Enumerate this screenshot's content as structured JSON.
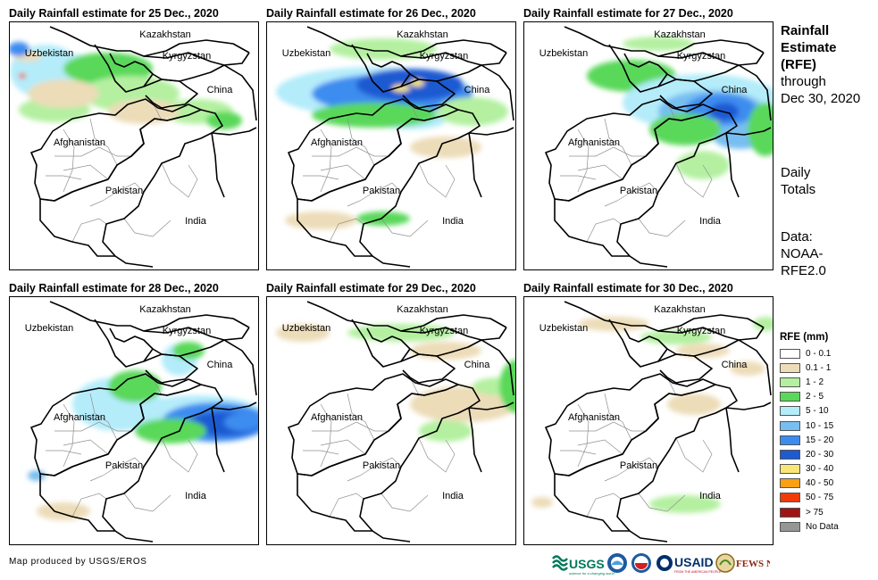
{
  "panels": [
    {
      "title": "Daily Rainfall estimate for 25 Dec., 2020"
    },
    {
      "title": "Daily Rainfall estimate for 26 Dec., 2020"
    },
    {
      "title": "Daily Rainfall estimate for 27 Dec., 2020"
    },
    {
      "title": "Daily Rainfall estimate for 28 Dec., 2020"
    },
    {
      "title": "Daily Rainfall estimate for 29 Dec., 2020"
    },
    {
      "title": "Daily Rainfall estimate for 30 Dec., 2020"
    }
  ],
  "map_labels": {
    "kazakhstan": "Kazakhstan",
    "uzbekistan": "Uzbekistan",
    "kyrgyzstan": "Kyrgyzstan",
    "china": "China",
    "afghanistan": "Afghanistan",
    "pakistan": "Pakistan",
    "india": "India"
  },
  "side_panel": {
    "title_line1": "Rainfall",
    "title_line2": "Estimate",
    "title_line3": "(RFE)",
    "through_line1": "through",
    "through_line2": "Dec 30, 2020",
    "daily_line1": "Daily",
    "daily_line2": "Totals",
    "data_line1": "Data:",
    "data_line2": "NOAA-",
    "data_line3": "RFE2.0"
  },
  "legend": {
    "title": "RFE (mm)",
    "items": [
      {
        "label": "0 - 0.1",
        "color": "#ffffff"
      },
      {
        "label": "0.1 - 1",
        "color": "#ecdcb8"
      },
      {
        "label": "1 - 2",
        "color": "#b4f0a0"
      },
      {
        "label": "2 - 5",
        "color": "#5ad85a"
      },
      {
        "label": "5 - 10",
        "color": "#b4ecfa"
      },
      {
        "label": "10 - 15",
        "color": "#78bef0"
      },
      {
        "label": "15 - 20",
        "color": "#3c8cf0"
      },
      {
        "label": "20 - 30",
        "color": "#1e5ad2"
      },
      {
        "label": "30 - 40",
        "color": "#fae678"
      },
      {
        "label": "40 - 50",
        "color": "#faa014"
      },
      {
        "label": "50 - 75",
        "color": "#f03c0a"
      },
      {
        "label": "> 75",
        "color": "#a01414"
      },
      {
        "label": "No Data",
        "color": "#969696"
      }
    ]
  },
  "credit": "Map produced by USGS/EROS",
  "logos": {
    "usgs": "USGS",
    "usgs_tagline": "science for a changing world",
    "usaid": "USAID",
    "usaid_tagline": "FROM THE AMERICAN PEOPLE",
    "fewsnet": "FEWS NET"
  }
}
